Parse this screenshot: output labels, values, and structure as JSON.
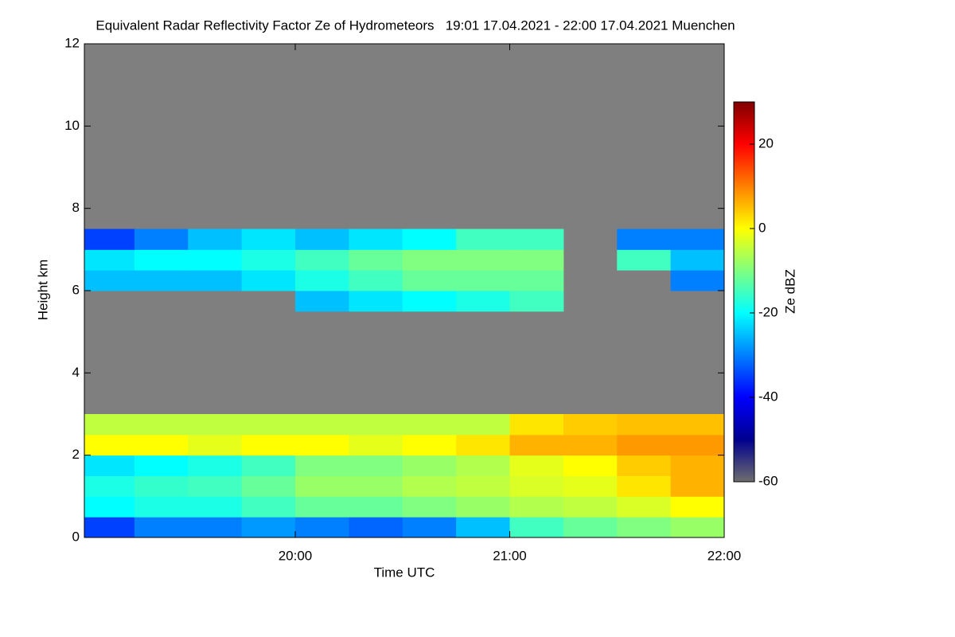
{
  "chart_data": {
    "type": "heatmap",
    "title": "Equivalent Radar Reflectivity Factor Ze of Hydrometeors   19:01 17.04.2021 - 22:00 17.04.2021 Muenchen",
    "x_label": "Time UTC",
    "y_label": "Height km",
    "colorbar_label": "Ze dBZ",
    "xlim": [
      19.0167,
      22.0
    ],
    "xticks": [
      {
        "value": 20,
        "label": "20:00"
      },
      {
        "value": 21,
        "label": "21:00"
      },
      {
        "value": 22,
        "label": "22:00"
      }
    ],
    "ylim": [
      0,
      12
    ],
    "yticks": [
      0,
      2,
      4,
      6,
      8,
      10,
      12
    ],
    "clim": [
      -60,
      30
    ],
    "cticks": [
      -60,
      -40,
      -20,
      0,
      20
    ],
    "colormap": [
      "#6e6e6e",
      "#00008f",
      "#0000ff",
      "#0080ff",
      "#00ffff",
      "#80ff80",
      "#ffff00",
      "#ff8000",
      "#ff0000",
      "#800000"
    ],
    "background_color": "#7f7f7f",
    "x_bins": [
      19.0167,
      19.25,
      19.5,
      19.75,
      20.0,
      20.25,
      20.5,
      20.75,
      21.0,
      21.25,
      21.5,
      21.75,
      22.0
    ],
    "y_bins": [
      0,
      0.5,
      1,
      1.5,
      2,
      2.5,
      3,
      3.5,
      4,
      4.5,
      5,
      5.5,
      6,
      6.5,
      7,
      7.5,
      8
    ],
    "z": [
      [
        -35,
        -30,
        -30,
        -28,
        -30,
        -32,
        -30,
        -25,
        -15,
        -12,
        -10,
        -8
      ],
      [
        -20,
        -18,
        -18,
        -15,
        -12,
        -12,
        -10,
        -8,
        -6,
        -5,
        -3,
        0
      ],
      [
        -18,
        -16,
        -15,
        -12,
        -8,
        -8,
        -6,
        -5,
        -3,
        -2,
        2,
        6
      ],
      [
        -22,
        -20,
        -18,
        -15,
        -10,
        -10,
        -8,
        -6,
        -2,
        0,
        4,
        6
      ],
      [
        0,
        0,
        -2,
        0,
        0,
        -2,
        0,
        2,
        6,
        6,
        8,
        8
      ],
      [
        -5,
        -5,
        -5,
        -5,
        -5,
        -5,
        -5,
        -5,
        2,
        4,
        5,
        5
      ],
      [
        null,
        null,
        null,
        null,
        null,
        null,
        null,
        null,
        null,
        null,
        null,
        null
      ],
      [
        null,
        null,
        null,
        null,
        null,
        null,
        null,
        null,
        null,
        null,
        null,
        null
      ],
      [
        null,
        null,
        null,
        null,
        null,
        null,
        null,
        null,
        null,
        null,
        null,
        null
      ],
      [
        null,
        null,
        null,
        null,
        null,
        null,
        null,
        null,
        null,
        null,
        null,
        null
      ],
      [
        null,
        null,
        null,
        null,
        null,
        null,
        null,
        null,
        null,
        null,
        null,
        null
      ],
      [
        null,
        null,
        null,
        null,
        -25,
        -22,
        -20,
        -18,
        -15,
        null,
        null,
        null
      ],
      [
        -25,
        -25,
        -25,
        -22,
        -18,
        -15,
        -12,
        -12,
        -12,
        null,
        null,
        -30
      ],
      [
        -22,
        -20,
        -20,
        -18,
        -15,
        -12,
        -10,
        -10,
        -10,
        null,
        -15,
        -25
      ],
      [
        -35,
        -30,
        -25,
        -22,
        -25,
        -22,
        -20,
        -15,
        -15,
        null,
        -30,
        -30
      ],
      [
        null,
        null,
        null,
        null,
        null,
        null,
        null,
        null,
        null,
        null,
        null,
        null
      ]
    ]
  }
}
